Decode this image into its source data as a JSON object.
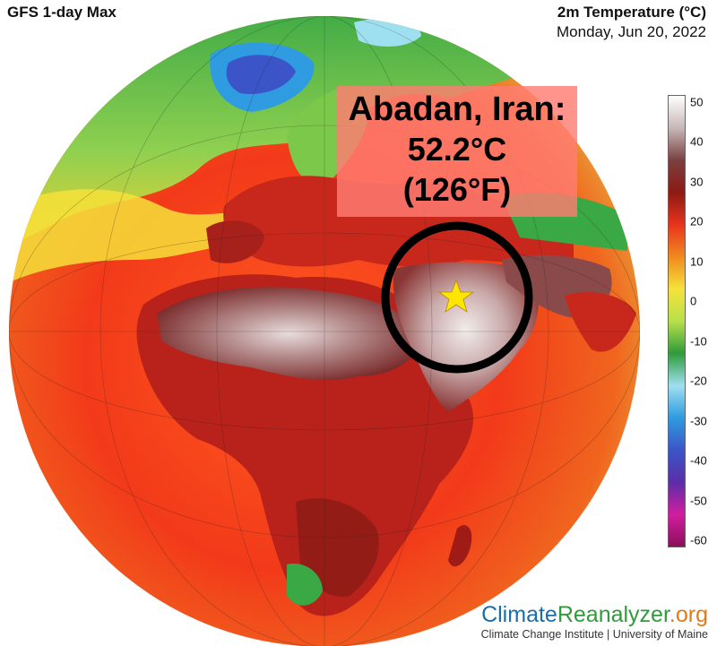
{
  "header": {
    "model_label": "GFS 1-day Max",
    "variable_label": "2m Temperature (°C)",
    "date_label": "Monday, Jun 20, 2022"
  },
  "callout": {
    "location": "Abadan, Iran:",
    "value_c": "52.2°C",
    "value_f": "(126°F)"
  },
  "marker": {
    "icon": "star-icon",
    "color": "#ffe600"
  },
  "colorbar": {
    "tick_labels": [
      "50",
      "40",
      "30",
      "20",
      "10",
      "0",
      "-10",
      "-20",
      "-30",
      "-40",
      "-50",
      "-60"
    ],
    "range": [
      -60,
      50
    ],
    "colors": [
      "#8b0f5a",
      "#d11ea0",
      "#5b2ea8",
      "#3b55c8",
      "#2f9be0",
      "#9fe0f0",
      "#2f9b3a",
      "#b8e04a",
      "#f5e23a",
      "#f08a1e",
      "#e8341c",
      "#8c1a14",
      "#7a4040",
      "#c8b8b8",
      "#ffffff"
    ]
  },
  "branding": {
    "part1": "Climate",
    "part2": "Reanalyzer",
    "part3": ".org",
    "credit": "Climate Change Institute | University of Maine"
  }
}
